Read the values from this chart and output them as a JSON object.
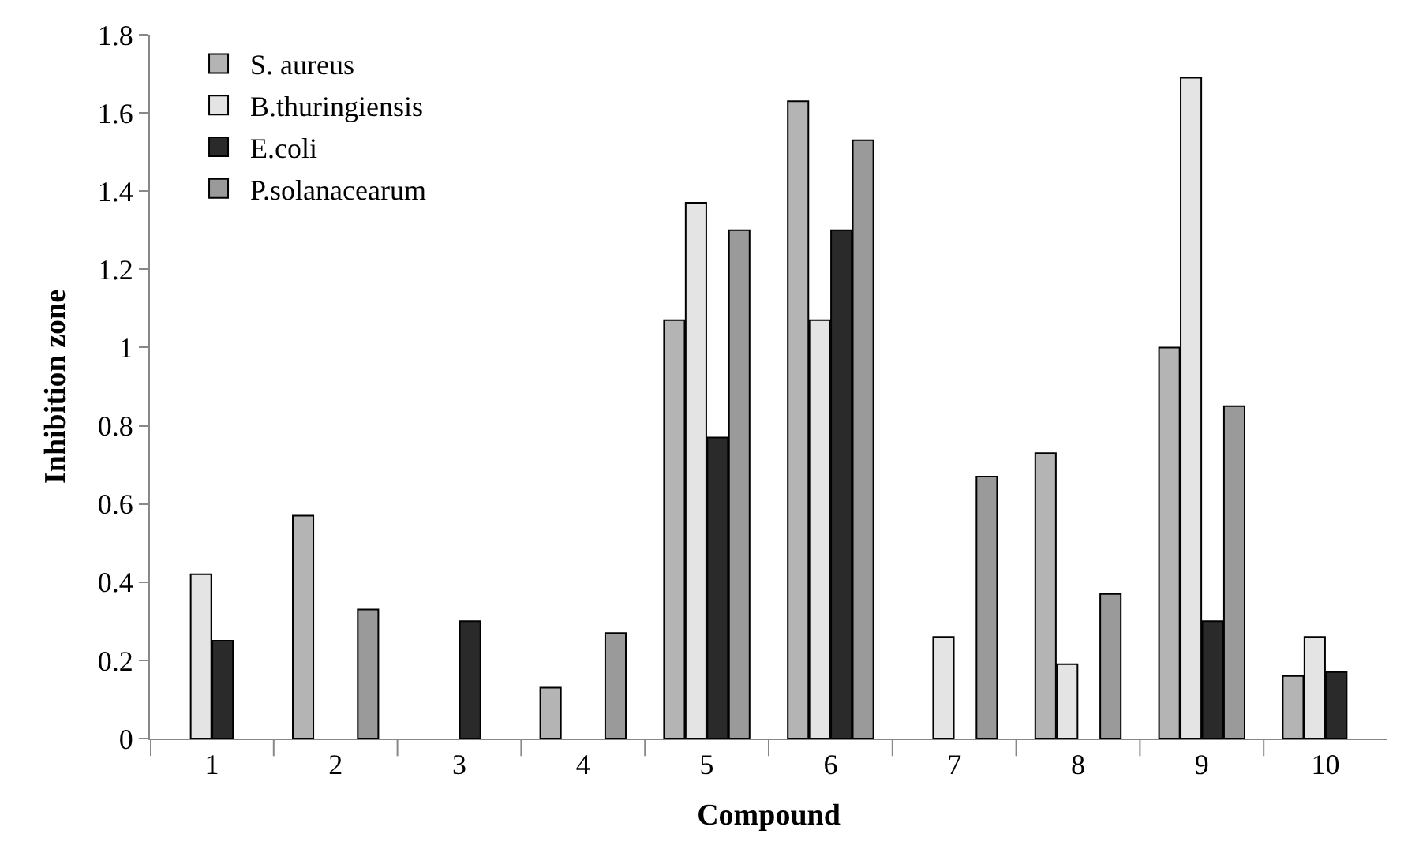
{
  "chart_data": {
    "type": "bar",
    "xlabel": "Compound",
    "ylabel": "Inhibition zone",
    "categories": [
      "1",
      "2",
      "3",
      "4",
      "5",
      "6",
      "7",
      "8",
      "9",
      "10"
    ],
    "series": [
      {
        "name": "S. aureus",
        "color": "#b4b4b4",
        "values": [
          null,
          0.57,
          null,
          0.13,
          1.07,
          1.63,
          null,
          0.73,
          1.0,
          0.16
        ]
      },
      {
        "name": "B.thuringiensis",
        "color": "#e4e4e4",
        "values": [
          0.42,
          null,
          null,
          null,
          1.37,
          1.07,
          0.26,
          0.19,
          1.69,
          0.26
        ]
      },
      {
        "name": "E.coli",
        "color": "#2a2a2a",
        "values": [
          0.25,
          null,
          0.3,
          null,
          0.77,
          1.3,
          null,
          null,
          0.3,
          0.17
        ]
      },
      {
        "name": "P.solanacearum",
        "color": "#9a9a9a",
        "values": [
          null,
          0.33,
          null,
          0.27,
          1.3,
          1.53,
          0.67,
          0.37,
          0.85,
          null
        ]
      }
    ],
    "ylim": [
      0,
      1.8
    ],
    "yticks": [
      0,
      0.2,
      0.4,
      0.6,
      0.8,
      1,
      1.2,
      1.4,
      1.6,
      1.8
    ],
    "legend": "top left"
  }
}
